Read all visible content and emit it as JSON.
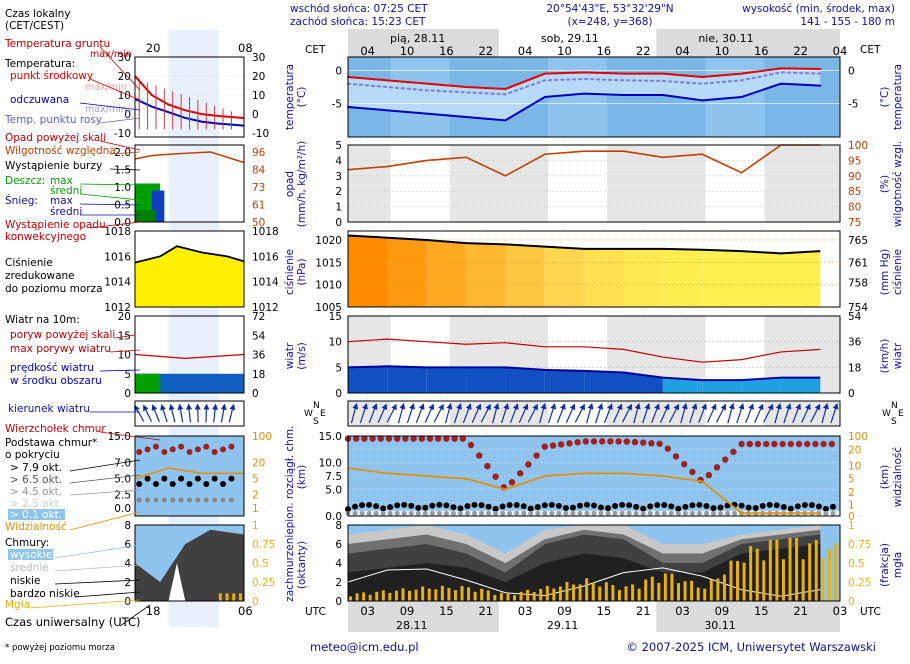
{
  "header": {
    "sunrise": "wschód słońca: 07:25 CET",
    "sunset": "zachód słońca: 15:23 CET",
    "coords": "20°54'43\"E, 53°32'29\"N",
    "grid": "(x=248, y=368)",
    "altitude_title": "wysokość (min, środek, max)",
    "altitude_values": "141 - 155 - 180 m"
  },
  "legend": {
    "time_local": "Czas lokalny",
    "time_local_sub": "(CET/CEST)",
    "ground_temp": "Temperatura gruntu",
    "ground_temp_sub": "max/min",
    "temperature": "Temperatura:",
    "center_point": "punkt środkowy",
    "max_min": "max/min",
    "perceived": "odczuwana",
    "max_min2": "max/min",
    "dew_point": "Temp. punktu rosy",
    "precip_above": "Opad powyżej skali",
    "humidity": "Wilgotność względna",
    "storm": "Wystąpienie burzy",
    "rain": "Deszcz:",
    "snow": "Śnieg:",
    "max": "max",
    "mean": "średni",
    "precip_occurrence": "Wystąpienie opadu",
    "precip_occurrence2": "konwekcyjnego",
    "pressure": "Ciśnienie",
    "pressure2": "zredukowane",
    "pressure3": "do poziomu morza",
    "wind": "Wiatr na 10m:",
    "gust_above": "poryw powyżej skali",
    "gust_max": "max porywy wiatru",
    "wind_speed": "prędkość wiatru",
    "wind_speed2": "w środku obszaru",
    "wind_dir": "kierunek wiatru",
    "cloud_top": "Wierzchołek chmur",
    "cloud_base": "Podstawa chmur*",
    "cloud_base2": "o pokryciu",
    "okt1": "> 7.9 okt.",
    "okt2": "> 6.5 okt.",
    "okt3": "> 4.5 okt.",
    "okt4": "> 2.5 okt.",
    "okt5": "> 0.1 okt.",
    "visibility": "Widzialność",
    "clouds": "Chmury:",
    "high": "wysokie",
    "medium": "średnie",
    "low": "niskie",
    "very_low": "bardzo niskie",
    "fog": "Mgła",
    "utc_time": "Czas uniwersalny (UTC)",
    "footnote": "* powyżej poziomu morza"
  },
  "axis_titles": {
    "temp_l": "temperatura",
    "temp_l2": "(°C)",
    "temp_r": "temperatura",
    "temp_r2": "(°C)",
    "precip_l": "opad",
    "precip_l2": "(mm/h, kg/m²/h)",
    "precip_r": "wilgotność wzgl.",
    "precip_r2": "(%)",
    "press_l": "ciśnienie",
    "press_l2": "(hPa)",
    "press_r": "ciśnienie",
    "press_r2": "(mm Hg)",
    "wind_l": "wiatr",
    "wind_l2": "(m/s)",
    "wind_r": "wiatr",
    "wind_r2": "(km/h)",
    "cloud_l": "pion. rozciągł. chm.",
    "cloud_l2": "(km)",
    "cloud_r": "widzialność",
    "cloud_r2": "(km)",
    "cover_l": "zachmurzenie",
    "cover_l2": "(oktanty)",
    "cover_r": "mgła",
    "cover_r2": "(frakcja)"
  },
  "time_axis": {
    "cet": "CET",
    "utc": "UTC",
    "days_top": [
      "pią, 28.11",
      "sob, 29.11",
      "nie, 30.11"
    ],
    "days_bottom": [
      "28.11",
      "29.11",
      "30.11"
    ],
    "top_hours": [
      "04",
      "10",
      "16",
      "22",
      "04",
      "10",
      "16",
      "22",
      "04",
      "10",
      "16",
      "22",
      "04"
    ],
    "bottom_hours": [
      "03",
      "09",
      "15",
      "21",
      "03",
      "09",
      "15",
      "21",
      "03",
      "09",
      "15",
      "21",
      "03"
    ],
    "mini_top": [
      "20",
      "02",
      "08"
    ],
    "mini_bottom": [
      "18",
      "00",
      "06"
    ]
  },
  "footer": {
    "email": "meteo@icm.edu.pl",
    "copyright": "© 2007-2025 ICM, Uniwersytet Warszawski"
  },
  "colors": {
    "temp_red": "#e00000",
    "temp_blue": "#0000c0",
    "dew": "#8080e0",
    "sky_blue": "#8fc4ee",
    "rh": "#c04000",
    "gust": "#c00000",
    "vis": "#e09010",
    "fog": "#e8b010",
    "title_blue": "#1010a0"
  },
  "chart_data": [
    {
      "type": "line",
      "name": "temperature",
      "x_unit": "hours from 28.11 00:00 UTC",
      "ylim": [
        -10,
        2
      ],
      "yticks": [
        0,
        -5
      ],
      "x": [
        0,
        6,
        12,
        18,
        24,
        30,
        36,
        42,
        48,
        54,
        60,
        66,
        72
      ],
      "series": [
        {
          "name": "punkt środkowy",
          "values": [
            -1,
            -1.5,
            -2,
            -2.5,
            -2.8,
            -0.5,
            -0.3,
            -0.5,
            -0.5,
            -1,
            -0.5,
            0.3,
            0.2
          ]
        },
        {
          "name": "odczuwana",
          "values": [
            -5.5,
            -6,
            -6.5,
            -7,
            -7.5,
            -4,
            -3.5,
            -3.7,
            -3.7,
            -4.5,
            -4,
            -2,
            -2.3
          ]
        },
        {
          "name": "Temp. punktu rosy",
          "values": [
            -2,
            -2.5,
            -3,
            -3.3,
            -3.6,
            -1.5,
            -1.3,
            -1.5,
            -1.6,
            -2,
            -1.5,
            -0.3,
            -0.5
          ]
        }
      ]
    },
    {
      "type": "line",
      "name": "precipitation_humidity",
      "ylim": [
        0,
        5
      ],
      "yticks": [
        0,
        1,
        2,
        3,
        4,
        5
      ],
      "y2lim": [
        75,
        100
      ],
      "y2ticks": [
        75,
        80,
        85,
        90,
        95,
        100
      ],
      "x": [
        0,
        6,
        12,
        18,
        24,
        30,
        36,
        42,
        48,
        54,
        60,
        66,
        72
      ],
      "series": [
        {
          "name": "Wilgotność względna",
          "values": [
            92,
            93,
            95,
            96,
            90,
            97,
            98,
            98,
            96,
            97,
            91,
            100,
            100
          ]
        }
      ]
    },
    {
      "type": "area",
      "name": "pressure",
      "ylim": [
        1005,
        1022
      ],
      "yticks": [
        1005,
        1010,
        1015,
        1020
      ],
      "y2ticks": [
        754,
        758,
        761,
        765
      ],
      "x": [
        0,
        6,
        12,
        18,
        24,
        30,
        36,
        42,
        48,
        54,
        60,
        66,
        72
      ],
      "series": [
        {
          "name": "Ciśnienie",
          "values": [
            1021,
            1020.5,
            1020,
            1019.3,
            1019,
            1018.5,
            1018,
            1018,
            1018,
            1017.8,
            1017.5,
            1017,
            1017.5
          ]
        }
      ]
    },
    {
      "type": "line",
      "name": "wind",
      "ylim": [
        0,
        15
      ],
      "yticks": [
        0,
        5,
        10,
        15
      ],
      "y2ticks": [
        0,
        18,
        36,
        54
      ],
      "x": [
        0,
        6,
        12,
        18,
        24,
        30,
        36,
        42,
        48,
        54,
        60,
        66,
        72
      ],
      "series": [
        {
          "name": "max porywy wiatru",
          "values": [
            10,
            10.5,
            10,
            9.5,
            9.8,
            9,
            9,
            8.5,
            7,
            6,
            6.5,
            8,
            8.5
          ]
        },
        {
          "name": "prędkość wiatru",
          "values": [
            5,
            5.2,
            5,
            5,
            5,
            4.5,
            4.3,
            4,
            3,
            2.5,
            2.5,
            3,
            3
          ]
        }
      ]
    },
    {
      "type": "scatter",
      "name": "cloud_base_visibility",
      "ylim": [
        0,
        15
      ],
      "yticks": [
        0,
        2.5,
        5,
        7.5,
        10,
        12.5,
        15
      ],
      "ytick_labels": [
        "0.0",
        "2.5",
        "5.0",
        "7.5",
        "10.0",
        "12.5",
        "15.0"
      ],
      "y2ticks": [
        0,
        1,
        2,
        5,
        10,
        20,
        100
      ],
      "x": [
        0,
        6,
        12,
        18,
        24,
        30,
        36,
        42,
        48,
        54,
        60,
        66,
        72
      ],
      "series": [
        {
          "name": "Widzialność",
          "values": [
            9,
            8,
            7.5,
            7,
            5,
            7.5,
            8,
            8,
            7.5,
            6.5,
            0.5,
            0.5,
            0.5
          ]
        },
        {
          "name": "Wierzchołek chmur",
          "values": [
            14.5,
            14.5,
            14.5,
            14.5,
            5,
            13,
            14,
            14,
            13.5,
            6.5,
            13.5,
            13.5,
            13.5
          ]
        }
      ]
    },
    {
      "type": "area",
      "name": "cloud_cover_fog",
      "ylim": [
        0,
        8
      ],
      "yticks": [
        0,
        2,
        4,
        6,
        8
      ],
      "y2ticks": [
        0,
        0.25,
        0.5,
        0.75,
        1
      ],
      "x": [
        0,
        6,
        12,
        18,
        24,
        30,
        36,
        42,
        48,
        54,
        60,
        66,
        72
      ],
      "series": [
        {
          "name": "Mgła",
          "values": [
            0.1,
            0.15,
            0.2,
            0.2,
            0.1,
            0.2,
            0.3,
            0.2,
            0.4,
            0.2,
            0.7,
            0.9,
            0.8
          ]
        }
      ]
    }
  ]
}
